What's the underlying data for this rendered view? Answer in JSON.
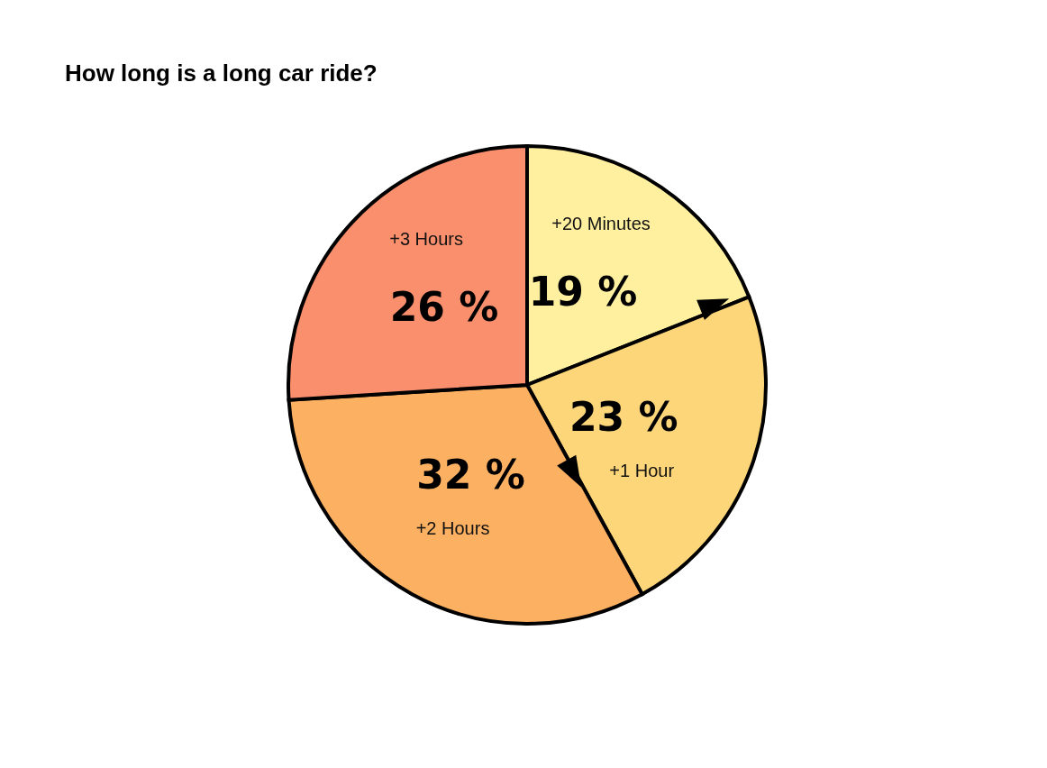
{
  "chart_data": {
    "type": "pie",
    "title": "How long is a long car ride?",
    "categories": [
      "+20 Minutes",
      "+1 Hour",
      "+2 Hours",
      "+3 Hours"
    ],
    "values": [
      19,
      23,
      32,
      26
    ],
    "colors": [
      "#fff0a0",
      "#fdd67a",
      "#fbb062",
      "#f98f6c"
    ],
    "value_labels": [
      "19 %",
      "23 %",
      "32 %",
      "26 %"
    ]
  }
}
